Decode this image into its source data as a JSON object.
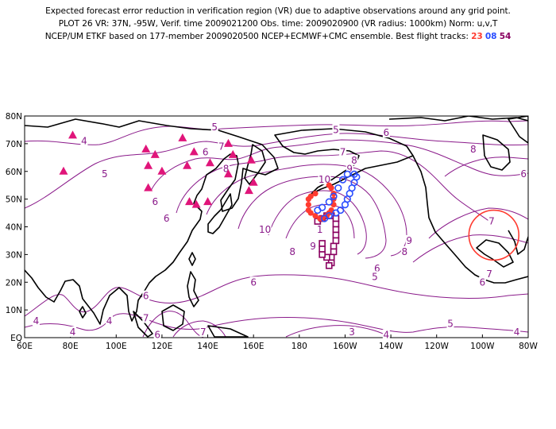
{
  "header": {
    "line1": "Expected forecast error reduction in verification region (VR) due to adaptive observations around any grid point.",
    "line2": "PLOT 26 VR: 37N, -95W, Verif. time 2009021200 Obs. time: 2009020900 (VR radius: 1000km) Norm: u,v,T",
    "line3_prefix": "NCEP/UM ETKF based on 177-member 2009020500 NCEP+ECMWF+CMC ensemble. Best flight tracks:",
    "track_a": "23",
    "track_b": "08",
    "track_c": "54"
  },
  "map": {
    "lat_labels": [
      "80N",
      "70N",
      "60N",
      "50N",
      "40N",
      "30N",
      "20N",
      "10N",
      "EQ"
    ],
    "lon_labels": [
      "60E",
      "80E",
      "100E",
      "120E",
      "140E",
      "160E",
      "180",
      "160W",
      "140W",
      "120W",
      "100W",
      "80W"
    ],
    "contour_labels": [
      {
        "text": "4",
        "lon": 86,
        "lat": 71
      },
      {
        "text": "5",
        "lon": 95,
        "lat": 59
      },
      {
        "text": "6",
        "lon": 117,
        "lat": 49
      },
      {
        "text": "6",
        "lon": 122,
        "lat": 43
      },
      {
        "text": "5",
        "lon": 143,
        "lat": 76
      },
      {
        "text": "6",
        "lon": 139,
        "lat": 67
      },
      {
        "text": "7",
        "lon": 146,
        "lat": 69
      },
      {
        "text": "8",
        "lon": 148,
        "lat": 61
      },
      {
        "text": "5",
        "lon": 196,
        "lat": 75
      },
      {
        "text": "6",
        "lon": 218,
        "lat": 74
      },
      {
        "text": "7",
        "lon": 199,
        "lat": 67
      },
      {
        "text": "8",
        "lon": 204,
        "lat": 64
      },
      {
        "text": "9",
        "lon": 202,
        "lat": 61
      },
      {
        "text": "10",
        "lon": 191,
        "lat": 57
      },
      {
        "text": "8",
        "lon": 256,
        "lat": 68
      },
      {
        "text": "6",
        "lon": 278,
        "lat": 59
      },
      {
        "text": "10",
        "lon": 165,
        "lat": 39
      },
      {
        "text": "8",
        "lon": 177,
        "lat": 31
      },
      {
        "text": "9",
        "lon": 186,
        "lat": 33
      },
      {
        "text": "1",
        "lon": 189,
        "lat": 39
      },
      {
        "text": "6",
        "lon": 214,
        "lat": 25
      },
      {
        "text": "5",
        "lon": 213,
        "lat": 22
      },
      {
        "text": "9",
        "lon": 228,
        "lat": 35
      },
      {
        "text": "8",
        "lon": 226,
        "lat": 31
      },
      {
        "text": "7",
        "lon": 264,
        "lat": 42
      },
      {
        "text": "6",
        "lon": 160,
        "lat": 20
      },
      {
        "text": "7",
        "lon": 263,
        "lat": 23
      },
      {
        "text": "6",
        "lon": 260,
        "lat": 20
      },
      {
        "text": "6",
        "lon": 113,
        "lat": 15
      },
      {
        "text": "7",
        "lon": 113,
        "lat": 7
      },
      {
        "text": "6",
        "lon": 118,
        "lat": 1
      },
      {
        "text": "7",
        "lon": 138,
        "lat": 2
      },
      {
        "text": "4",
        "lon": 65,
        "lat": 6
      },
      {
        "text": "4",
        "lon": 81,
        "lat": 2
      },
      {
        "text": "4",
        "lon": 97,
        "lat": 6
      },
      {
        "text": "3",
        "lon": 203,
        "lat": 2
      },
      {
        "text": "4",
        "lon": 218,
        "lat": 1
      },
      {
        "text": "5",
        "lon": 246,
        "lat": 5
      },
      {
        "text": "4",
        "lon": 275,
        "lat": 2
      }
    ],
    "triangles": [
      {
        "lon": 81,
        "lat": 73
      },
      {
        "lon": 77,
        "lat": 60
      },
      {
        "lon": 113,
        "lat": 68
      },
      {
        "lon": 114,
        "lat": 62
      },
      {
        "lon": 117,
        "lat": 66
      },
      {
        "lon": 120,
        "lat": 60
      },
      {
        "lon": 129,
        "lat": 72
      },
      {
        "lon": 131,
        "lat": 62
      },
      {
        "lon": 134,
        "lat": 67
      },
      {
        "lon": 141,
        "lat": 63
      },
      {
        "lon": 149,
        "lat": 70
      },
      {
        "lon": 151,
        "lat": 66
      },
      {
        "lon": 149,
        "lat": 59
      },
      {
        "lon": 159,
        "lat": 64
      },
      {
        "lon": 114,
        "lat": 54
      },
      {
        "lon": 132,
        "lat": 49
      },
      {
        "lon": 135,
        "lat": 48
      },
      {
        "lon": 140,
        "lat": 49
      },
      {
        "lon": 158,
        "lat": 53
      },
      {
        "lon": 160,
        "lat": 56
      }
    ],
    "track_23": [
      {
        "lon": 187,
        "lat": 52
      },
      {
        "lon": 185,
        "lat": 51
      },
      {
        "lon": 184,
        "lat": 50
      },
      {
        "lon": 184,
        "lat": 48
      },
      {
        "lon": 184,
        "lat": 46
      },
      {
        "lon": 185,
        "lat": 45
      },
      {
        "lon": 187,
        "lat": 44
      },
      {
        "lon": 189,
        "lat": 43
      },
      {
        "lon": 190,
        "lat": 43
      },
      {
        "lon": 192,
        "lat": 44
      },
      {
        "lon": 193,
        "lat": 45
      },
      {
        "lon": 194,
        "lat": 46
      },
      {
        "lon": 195,
        "lat": 48
      },
      {
        "lon": 195,
        "lat": 50
      },
      {
        "lon": 195,
        "lat": 52
      },
      {
        "lon": 194,
        "lat": 54
      },
      {
        "lon": 193,
        "lat": 55
      }
    ],
    "track_08": [
      {
        "lon": 191,
        "lat": 43
      },
      {
        "lon": 193,
        "lat": 44
      },
      {
        "lon": 196,
        "lat": 45
      },
      {
        "lon": 198,
        "lat": 46
      },
      {
        "lon": 200,
        "lat": 48
      },
      {
        "lon": 201,
        "lat": 50
      },
      {
        "lon": 202,
        "lat": 52
      },
      {
        "lon": 203,
        "lat": 54
      },
      {
        "lon": 204,
        "lat": 56
      },
      {
        "lon": 205,
        "lat": 58
      },
      {
        "lon": 204,
        "lat": 59
      },
      {
        "lon": 201,
        "lat": 59
      },
      {
        "lon": 199,
        "lat": 57
      },
      {
        "lon": 197,
        "lat": 54
      },
      {
        "lon": 195,
        "lat": 51
      },
      {
        "lon": 193,
        "lat": 49
      },
      {
        "lon": 190,
        "lat": 47
      },
      {
        "lon": 188,
        "lat": 46
      }
    ],
    "track_54": [
      {
        "lon": 188,
        "lat": 42
      },
      {
        "lon": 190,
        "lat": 43
      },
      {
        "lon": 192,
        "lat": 44
      },
      {
        "lon": 194,
        "lat": 44
      },
      {
        "lon": 196,
        "lat": 43
      },
      {
        "lon": 196,
        "lat": 41
      },
      {
        "lon": 196,
        "lat": 39
      },
      {
        "lon": 196,
        "lat": 37
      },
      {
        "lon": 196,
        "lat": 35
      },
      {
        "lon": 195,
        "lat": 33
      },
      {
        "lon": 195,
        "lat": 31
      },
      {
        "lon": 194,
        "lat": 29
      },
      {
        "lon": 194,
        "lat": 27
      },
      {
        "lon": 193,
        "lat": 26
      },
      {
        "lon": 192,
        "lat": 29
      },
      {
        "lon": 190,
        "lat": 30
      },
      {
        "lon": 190,
        "lat": 32
      },
      {
        "lon": 190,
        "lat": 34
      }
    ],
    "verification_region": {
      "lon": 265,
      "lat": 37,
      "radius_km": 1000
    },
    "colors": {
      "contour": "#8a1a8a",
      "triangle": "#e0157a",
      "track_23": "#ff3b30",
      "track_08": "#2a4dff",
      "track_54": "#8a0060",
      "vr_circle": "#ff3b30",
      "coast": "#000000"
    }
  }
}
